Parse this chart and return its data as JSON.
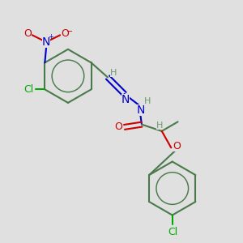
{
  "background_color": "#e0e0e0",
  "bond_color": "#4a7a4a",
  "bond_width": 1.5,
  "atom_colors": {
    "C": "#4a7a4a",
    "H": "#6a9a6a",
    "N": "#0000cc",
    "O": "#cc0000",
    "Cl": "#00aa00"
  },
  "font_size": 9
}
